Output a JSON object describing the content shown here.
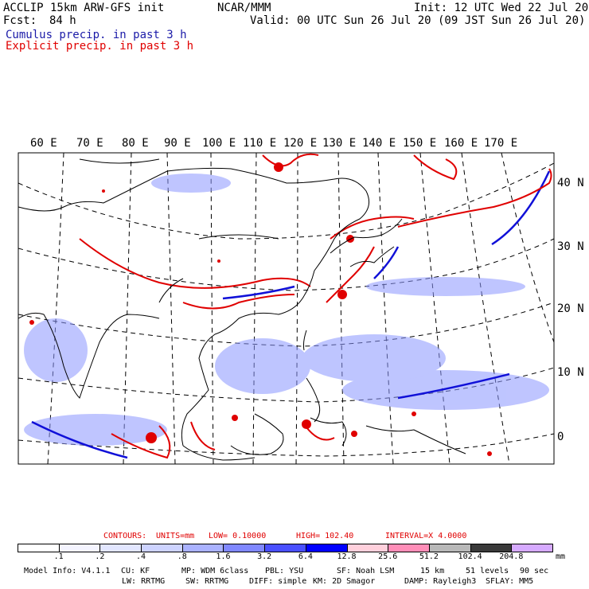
{
  "header": {
    "model_line": "ACCLIP 15km ARW-GFS init",
    "fcst_label": "Fcst:",
    "fcst_value": "84 h",
    "org": "NCAR/MMM",
    "init": "Init: 12 UTC Wed 22 Jul 20",
    "valid": "Valid: 00 UTC Sun 26 Jul 20 (09 JST Sun 26 Jul 20)",
    "cumulus": "Cumulus precip. in past 3 h",
    "explicit": "Explicit precip. in past 3 h",
    "cumulus_color": "#1a1aa8",
    "explicit_color": "#e00000"
  },
  "map": {
    "lon_labels": [
      "60 E",
      "70 E",
      "80 E",
      "90 E",
      "100 E",
      "110 E",
      "120 E",
      "130 E",
      "140 E",
      "150 E",
      "160 E",
      "170 E"
    ],
    "lat_labels": [
      "40 N",
      "30 N",
      "20 N",
      "10 N",
      "0"
    ]
  },
  "contours": {
    "label": "CONTOURS:",
    "units": "UNITS=mm",
    "low": "LOW= 0.10000",
    "high": "HIGH= 102.40",
    "interval": "INTERVAL=X 4.0000"
  },
  "colorbar": {
    "labels": [
      ".1",
      ".2",
      ".4",
      ".8",
      "1.6",
      "3.2",
      "6.4",
      "12.8",
      "25.6",
      "51.2",
      "102.4",
      "204.8"
    ],
    "unit": "mm",
    "colors": [
      "#ffffff",
      "#f4f4ff",
      "#e2e6ff",
      "#cdd3ff",
      "#aab2ff",
      "#8088ff",
      "#4a50ff",
      "#0000ff",
      "#ffd0dc",
      "#ff8eb8",
      "#b8b8b8",
      "#3a3a3a",
      "#d6aaff"
    ]
  },
  "footer": {
    "line1": [
      "Model Info: V4.1.1",
      "CU: KF",
      "MP: WDM 6class",
      "PBL: YSU",
      "SF: Noah LSM",
      "15 km",
      "51 levels",
      "90 sec"
    ],
    "line2": [
      "LW: RRTMG",
      "SW: RRTMG",
      "DIFF: simple",
      "KM: 2D Smagor",
      "DAMP: Rayleigh3",
      "SFLAY: MM5"
    ]
  }
}
